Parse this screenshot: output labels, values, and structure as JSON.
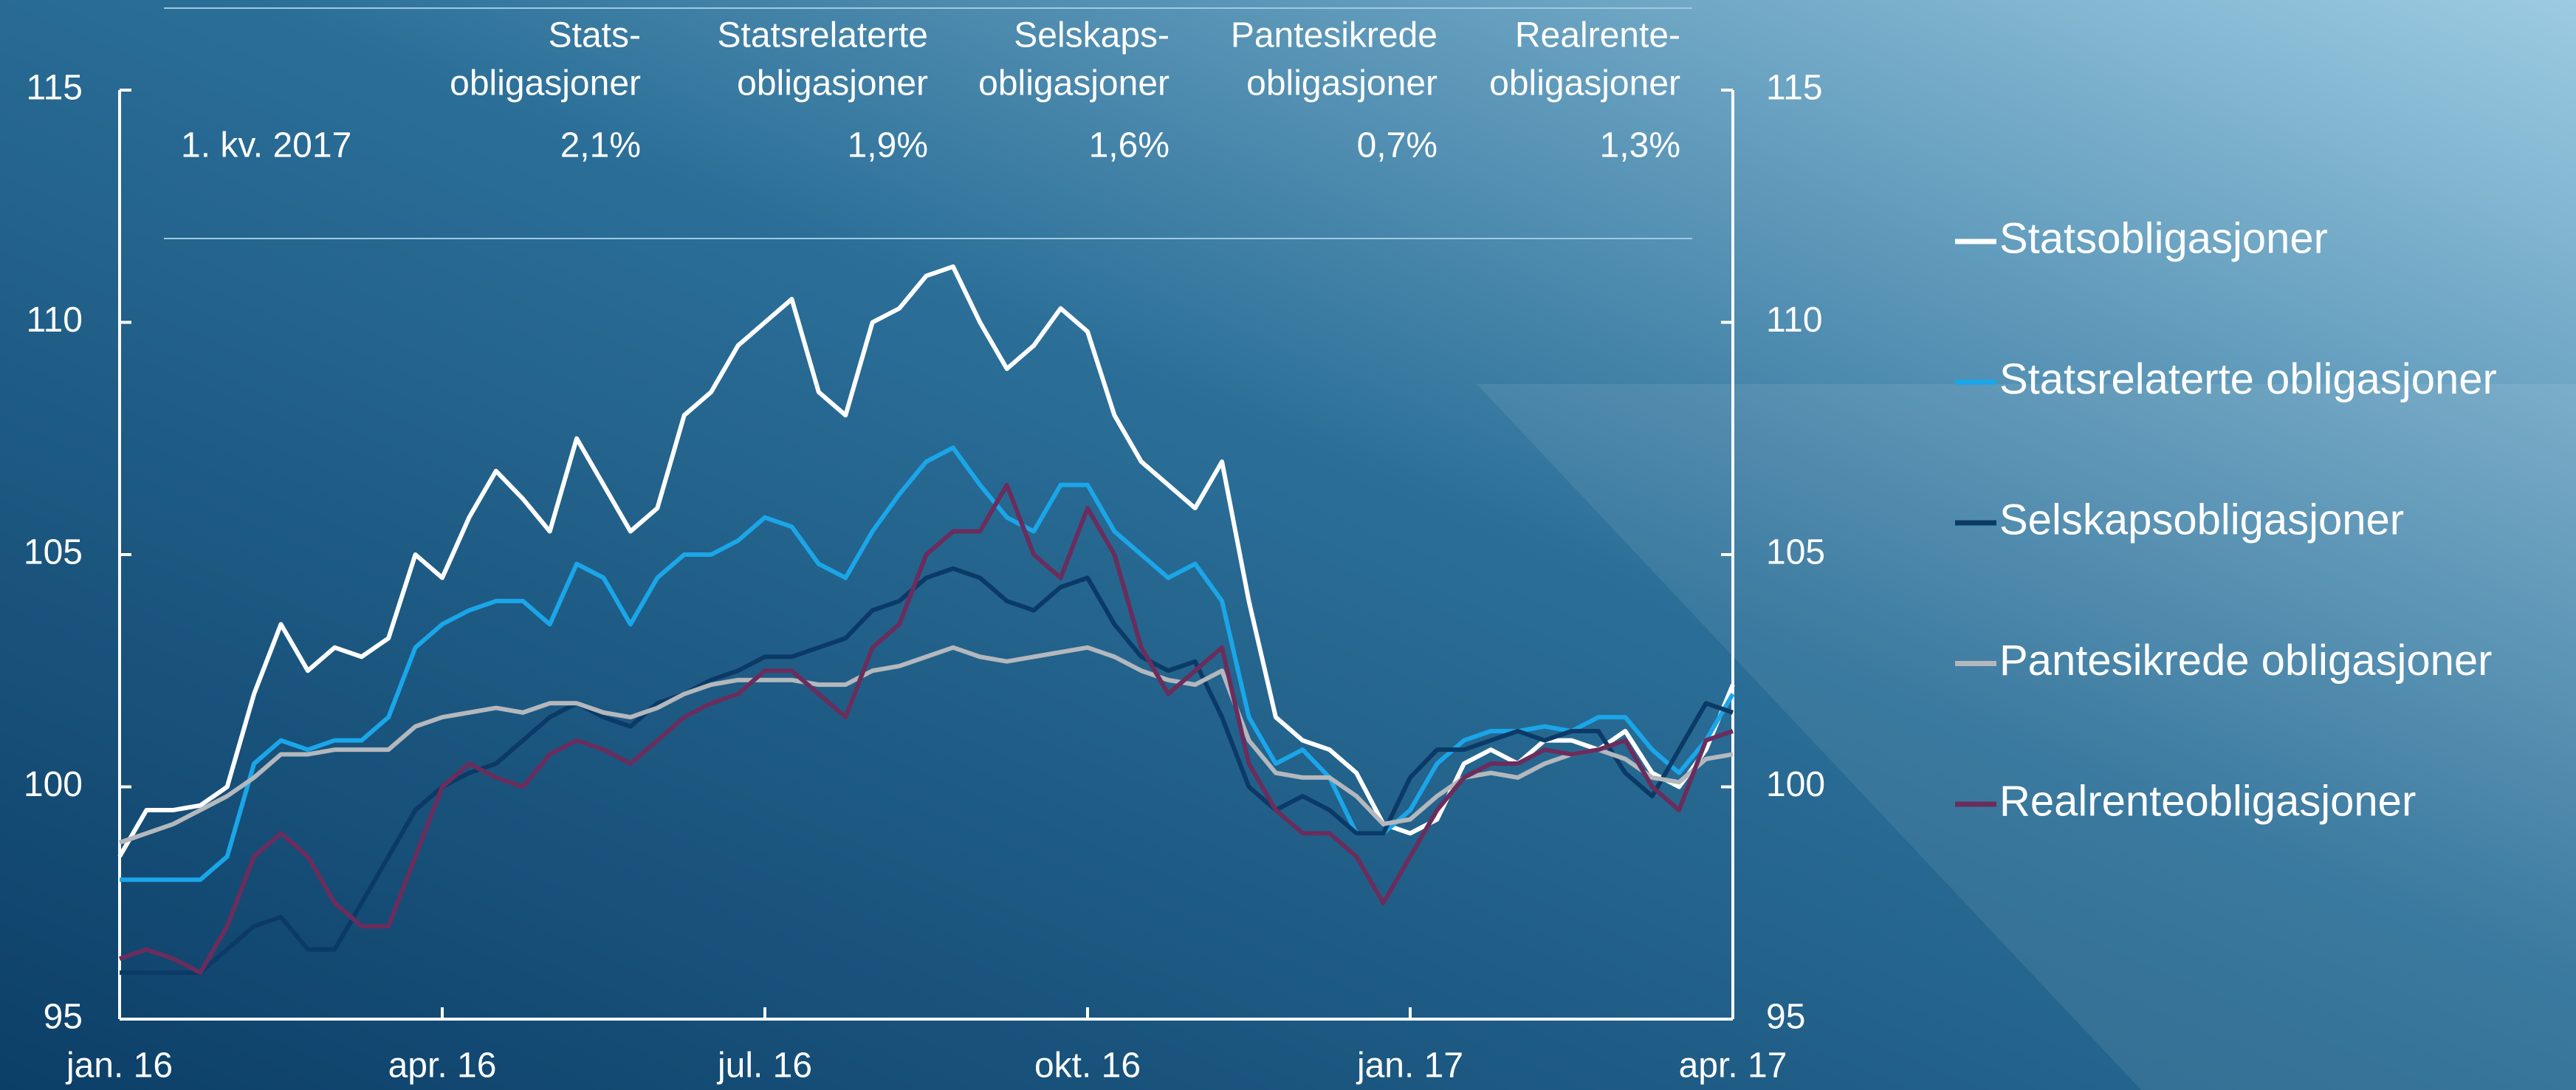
{
  "chart_data": {
    "type": "line",
    "x": [
      0,
      0.25,
      0.5,
      0.75,
      1,
      1.25,
      1.5,
      1.75,
      2,
      2.25,
      2.5,
      2.75,
      3,
      3.25,
      3.5,
      3.75,
      4,
      4.25,
      4.5,
      4.75,
      5,
      5.25,
      5.5,
      5.75,
      6,
      6.25,
      6.5,
      6.75,
      7,
      7.25,
      7.5,
      7.75,
      8,
      8.25,
      8.5,
      8.75,
      9,
      9.25,
      9.5,
      9.75,
      10,
      10.25,
      10.5,
      10.75,
      11,
      11.25,
      11.5,
      11.75,
      12,
      12.25,
      12.5,
      12.75,
      13,
      13.25,
      13.5,
      13.75,
      14,
      14.25,
      14.5,
      14.75,
      15
    ],
    "xlim": [
      0,
      15
    ],
    "xticks": [
      {
        "value": 0,
        "label": "jan. 16"
      },
      {
        "value": 3,
        "label": "apr. 16"
      },
      {
        "value": 6,
        "label": "jul. 16"
      },
      {
        "value": 9,
        "label": "okt. 16"
      },
      {
        "value": 12,
        "label": "jan. 17"
      },
      {
        "value": 15,
        "label": "apr. 17"
      }
    ],
    "ylim": [
      95,
      115
    ],
    "yticks": [
      95,
      100,
      105,
      110,
      115
    ],
    "y2lim": [
      95,
      115
    ],
    "y2ticks": [
      95,
      100,
      105,
      110,
      115
    ],
    "series": [
      {
        "name": "Statsobligasjoner",
        "color": "#ffffff",
        "values": [
          98.5,
          99.5,
          99.5,
          99.6,
          100,
          102,
          103.5,
          102.5,
          103,
          102.8,
          103.2,
          105,
          104.5,
          105.8,
          106.8,
          106.2,
          105.5,
          107.5,
          106.5,
          105.5,
          106,
          108,
          108.5,
          109.5,
          110,
          110.5,
          108.5,
          108,
          110,
          110.3,
          111,
          111.2,
          110,
          109,
          109.5,
          110.3,
          109.8,
          108,
          107,
          106.5,
          106,
          107,
          104,
          101.5,
          101,
          100.8,
          100.3,
          99.2,
          99,
          99.3,
          100.5,
          100.8,
          100.5,
          101,
          101,
          100.8,
          101.2,
          100.3,
          100,
          100.8,
          102.2
        ]
      },
      {
        "name": "Statsrelaterte obligasjoner",
        "color": "#1aa6e8",
        "values": [
          98,
          98,
          98,
          98,
          98.5,
          100.5,
          101,
          100.8,
          101,
          101,
          101.5,
          103,
          103.5,
          103.8,
          104,
          104,
          103.5,
          104.8,
          104.5,
          103.5,
          104.5,
          105,
          105,
          105.3,
          105.8,
          105.6,
          104.8,
          104.5,
          105.5,
          106.3,
          107,
          107.3,
          106.5,
          105.8,
          105.5,
          106.5,
          106.5,
          105.5,
          105,
          104.5,
          104.8,
          104,
          101.5,
          100.5,
          100.8,
          100.2,
          99,
          99,
          99.5,
          100.5,
          101,
          101.2,
          101.2,
          101.3,
          101.2,
          101.5,
          101.5,
          100.8,
          100.3,
          101,
          102
        ]
      },
      {
        "name": "Selskapsobligasjoner",
        "color": "#0b3a66",
        "values": [
          96,
          96,
          96,
          96,
          96.5,
          97,
          97.2,
          96.5,
          96.5,
          97.5,
          98.5,
          99.5,
          100,
          100.3,
          100.5,
          101,
          101.5,
          101.8,
          101.5,
          101.3,
          101.8,
          102,
          102.3,
          102.5,
          102.8,
          102.8,
          103,
          103.2,
          103.8,
          104,
          104.5,
          104.7,
          104.5,
          104,
          103.8,
          104.3,
          104.5,
          103.5,
          102.8,
          102.5,
          102.7,
          101.5,
          100,
          99.5,
          99.8,
          99.5,
          99,
          99,
          100.2,
          100.8,
          100.8,
          101,
          101.2,
          101,
          101.2,
          101.2,
          100.3,
          99.8,
          100.8,
          101.8,
          101.6
        ]
      },
      {
        "name": "Pantesikrede obligasjoner",
        "color": "#b4b8bd",
        "values": [
          98.8,
          99,
          99.2,
          99.5,
          99.8,
          100.2,
          100.7,
          100.7,
          100.8,
          100.8,
          100.8,
          101.3,
          101.5,
          101.6,
          101.7,
          101.6,
          101.8,
          101.8,
          101.6,
          101.5,
          101.7,
          102,
          102.2,
          102.3,
          102.3,
          102.3,
          102.2,
          102.2,
          102.5,
          102.6,
          102.8,
          103,
          102.8,
          102.7,
          102.8,
          102.9,
          103,
          102.8,
          102.5,
          102.3,
          102.2,
          102.5,
          101,
          100.3,
          100.2,
          100.2,
          99.8,
          99.2,
          99.3,
          99.8,
          100.2,
          100.3,
          100.2,
          100.5,
          100.7,
          100.8,
          100.6,
          100.2,
          100.1,
          100.6,
          100.7
        ]
      },
      {
        "name": "Realrenteobligasjoner",
        "color": "#6b2d5c",
        "values": [
          96.3,
          96.5,
          96.3,
          96,
          97,
          98.5,
          99,
          98.5,
          97.5,
          97,
          97,
          98.5,
          100,
          100.5,
          100.2,
          100,
          100.7,
          101,
          100.8,
          100.5,
          101,
          101.5,
          101.8,
          102,
          102.5,
          102.5,
          102,
          101.5,
          103,
          103.5,
          105,
          105.5,
          105.5,
          106.5,
          105,
          104.5,
          106,
          105,
          103,
          102,
          102.5,
          103,
          100.5,
          99.5,
          99,
          99,
          98.5,
          97.5,
          98.5,
          99.5,
          100.2,
          100.5,
          100.5,
          100.8,
          100.7,
          100.8,
          101,
          100,
          99.5,
          101,
          101.2
        ]
      }
    ],
    "table": {
      "columns": [
        [
          "Stats-",
          "obligasjoner"
        ],
        [
          "Statsrelaterte",
          "obligasjoner"
        ],
        [
          "Selskaps-",
          "obligasjoner"
        ],
        [
          "Pantesikrede",
          "obligasjoner"
        ],
        [
          "Realrente-",
          "obligasjoner"
        ]
      ],
      "row_label": "1. kv. 2017",
      "row": [
        "2,1%",
        "1,9%",
        "1,6%",
        "0,7%",
        "1,3%"
      ]
    }
  }
}
